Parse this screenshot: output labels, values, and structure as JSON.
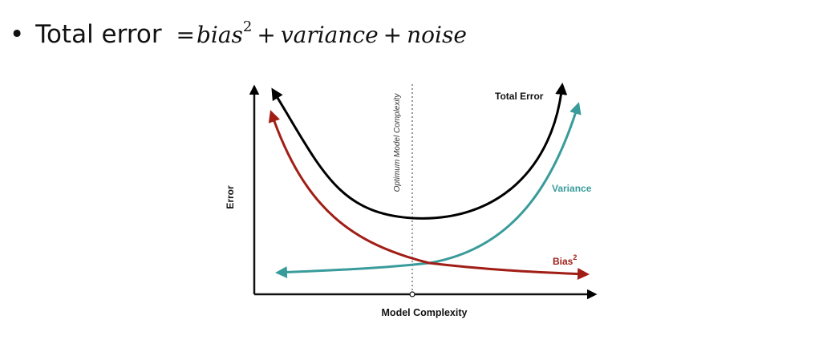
{
  "bullet": {
    "marker": "•",
    "prefix": "Total error",
    "equals": "=",
    "term1": "bias",
    "term1_sup": "2",
    "plus1": "+",
    "term2": "variance",
    "plus2": "+",
    "term3": "noise"
  },
  "diagram": {
    "y_axis_label": "Error",
    "x_axis_label": "Model Complexity",
    "optimum_label": "Optimum Model Complexity",
    "total_error_label": "Total Error",
    "variance_label": "Variance",
    "bias_label": "Bias",
    "bias_sup": "2",
    "colors": {
      "total_error": "#000000",
      "variance": "#3a9b9b",
      "bias": "#a01e16",
      "axis": "#111111",
      "optimum_line": "#555555"
    }
  }
}
